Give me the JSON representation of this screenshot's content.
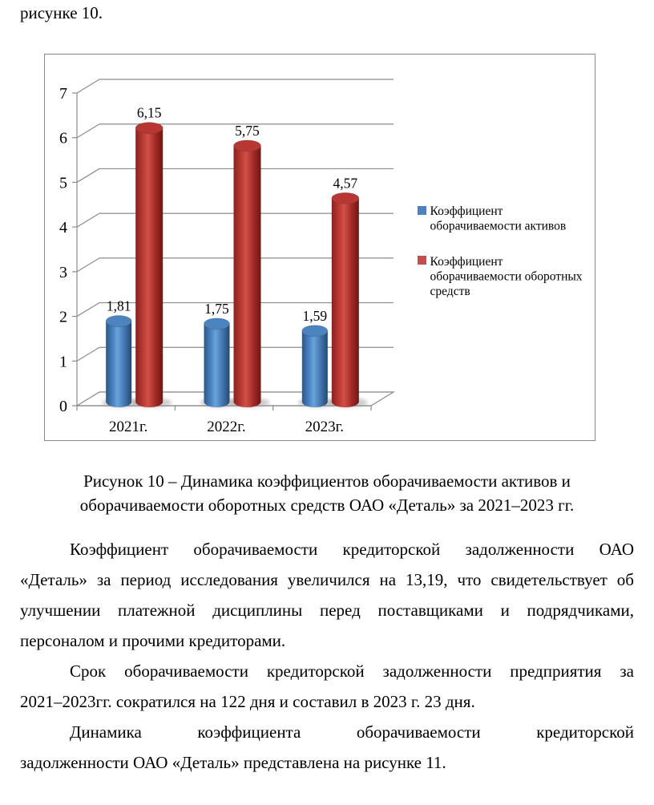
{
  "document": {
    "intro_text": "рисунке 10.",
    "caption": {
      "lines": [
        "Рисунок 10 – Динамика коэффициентов оборачиваемости активов и",
        "оборачиваемости оборотных средств ОАО «Деталь» за 2021–2023 гг."
      ]
    },
    "paragraphs": [
      {
        "lines": [
          "Коэффициент оборачиваемости кредиторской задолженности ОАО",
          "«Деталь» за период исследования увеличился на 13,19, что свидетельствует об",
          "улучшении платежной дисциплины перед поставщиками и подрядчиками,",
          "персоналом и прочими кредиторами."
        ]
      },
      {
        "lines": [
          "Срок оборачиваемости кредиторской задолженности предприятия за",
          "2021–2023гг. сократился на 122 дня и составил в 2023 г. 23 дня."
        ]
      },
      {
        "lines": [
          "Динамика коэффициента оборачиваемости кредиторской",
          "задолженности ОАО «Деталь» представлена на рисунке 11."
        ]
      }
    ]
  },
  "chart_data": {
    "type": "bar",
    "style": "3d-cylinder",
    "title": "",
    "categories": [
      "2021г.",
      "2022г.",
      "2023г."
    ],
    "series": [
      {
        "name": "Коэффициент оборачиваемости активов",
        "color": "#4F81BD",
        "cap_color": "#4B84BE",
        "values": [
          1.81,
          1.75,
          1.59
        ],
        "value_labels": [
          "1,81",
          "1,75",
          "1,59"
        ]
      },
      {
        "name": "Коэффициент оборачиваемости оборотных средств",
        "color": "#C0504D",
        "cap_color": "#B93733",
        "values": [
          6.15,
          5.75,
          4.57
        ],
        "value_labels": [
          "6,15",
          "5,75",
          "4,57"
        ]
      }
    ],
    "ylim": [
      0,
      7
    ],
    "y_ticks": [
      "0",
      "1",
      "2",
      "3",
      "4",
      "5",
      "6",
      "7"
    ],
    "grid": true,
    "legend_position": "right",
    "legend_entries": [
      {
        "lines": [
          "Коэффициент",
          "оборачиваемости активов"
        ],
        "color": "#4F81BD"
      },
      {
        "lines": [
          "Коэффициент",
          "оборачиваемости оборотных",
          "средств"
        ],
        "color": "#C0504D"
      }
    ],
    "grid_color": "#8C8C8C"
  }
}
